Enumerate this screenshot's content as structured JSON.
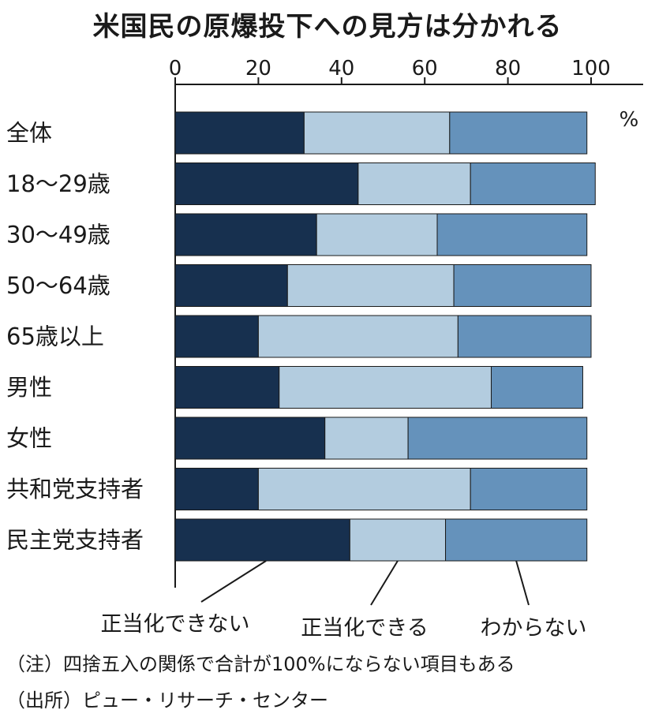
{
  "chart_data": {
    "type": "bar",
    "stacked": true,
    "orientation": "horizontal",
    "title": "米国民の原爆投下への見方は分かれる",
    "unit": "%",
    "xlim": [
      0,
      100
    ],
    "xticks": [
      "0",
      "20",
      "40",
      "60",
      "80",
      "100"
    ],
    "categories": [
      "全体",
      "18〜29歳",
      "30〜49歳",
      "50〜64歳",
      "65歳以上",
      "男性",
      "女性",
      "共和党支持者",
      "民主党支持者"
    ],
    "series": [
      {
        "name": "正当化できない",
        "color": "#17304f",
        "values": [
          31,
          44,
          34,
          27,
          20,
          25,
          36,
          20,
          42
        ]
      },
      {
        "name": "正当化できる",
        "color": "#b3ccdf",
        "values": [
          35,
          27,
          29,
          40,
          48,
          51,
          20,
          51,
          23
        ]
      },
      {
        "name": "わからない",
        "color": "#6592bb",
        "values": [
          33,
          30,
          36,
          33,
          32,
          22,
          43,
          28,
          34
        ]
      }
    ]
  },
  "notes": [
    "（注）四捨五入の関係で合計が100%にならない項目もある",
    "（出所）ピュー・リサーチ・センター"
  ]
}
